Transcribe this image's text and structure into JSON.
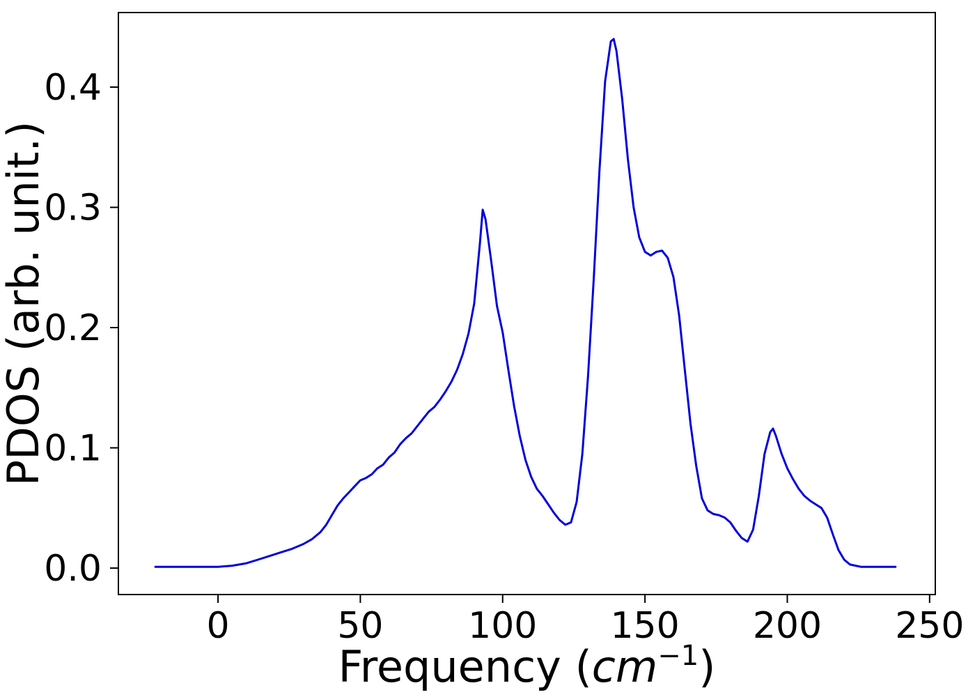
{
  "chart_data": {
    "type": "line",
    "title": "",
    "xlabel": "Frequency (cm^-1)",
    "xlabel_parts": {
      "prefix": "Frequency (",
      "italic": "cm",
      "superscript": "−1",
      "suffix": ")"
    },
    "ylabel": "PDOS (arb. unit.)",
    "line_color": "#0000dd",
    "grid": false,
    "legend": "none",
    "xlim": [
      -35,
      252
    ],
    "ylim": [
      -0.022,
      0.462
    ],
    "x_ticks": [
      0,
      50,
      100,
      150,
      200,
      250
    ],
    "x_tick_labels": [
      "0",
      "50",
      "100",
      "150",
      "200",
      "250"
    ],
    "y_ticks": [
      0.0,
      0.1,
      0.2,
      0.3,
      0.4
    ],
    "y_tick_labels": [
      "0.0",
      "0.1",
      "0.2",
      "0.3",
      "0.4"
    ],
    "points": [
      [
        -22,
        0.001
      ],
      [
        -15,
        0.001
      ],
      [
        -10,
        0.001
      ],
      [
        -5,
        0.001
      ],
      [
        0,
        0.001
      ],
      [
        5,
        0.002
      ],
      [
        10,
        0.004
      ],
      [
        14,
        0.007
      ],
      [
        18,
        0.01
      ],
      [
        22,
        0.013
      ],
      [
        26,
        0.016
      ],
      [
        30,
        0.02
      ],
      [
        33,
        0.024
      ],
      [
        36,
        0.03
      ],
      [
        38,
        0.036
      ],
      [
        40,
        0.044
      ],
      [
        42,
        0.052
      ],
      [
        44,
        0.058
      ],
      [
        46,
        0.063
      ],
      [
        48,
        0.068
      ],
      [
        50,
        0.073
      ],
      [
        52,
        0.075
      ],
      [
        54,
        0.078
      ],
      [
        56,
        0.083
      ],
      [
        58,
        0.086
      ],
      [
        60,
        0.092
      ],
      [
        62,
        0.096
      ],
      [
        64,
        0.103
      ],
      [
        66,
        0.108
      ],
      [
        68,
        0.112
      ],
      [
        70,
        0.118
      ],
      [
        72,
        0.124
      ],
      [
        74,
        0.13
      ],
      [
        76,
        0.134
      ],
      [
        78,
        0.14
      ],
      [
        80,
        0.147
      ],
      [
        82,
        0.155
      ],
      [
        84,
        0.165
      ],
      [
        86,
        0.178
      ],
      [
        88,
        0.195
      ],
      [
        90,
        0.22
      ],
      [
        92,
        0.27
      ],
      [
        93,
        0.298
      ],
      [
        94,
        0.29
      ],
      [
        96,
        0.255
      ],
      [
        98,
        0.218
      ],
      [
        100,
        0.196
      ],
      [
        102,
        0.165
      ],
      [
        104,
        0.135
      ],
      [
        106,
        0.11
      ],
      [
        108,
        0.09
      ],
      [
        110,
        0.076
      ],
      [
        112,
        0.066
      ],
      [
        114,
        0.06
      ],
      [
        116,
        0.053
      ],
      [
        118,
        0.046
      ],
      [
        120,
        0.04
      ],
      [
        122,
        0.036
      ],
      [
        124,
        0.038
      ],
      [
        126,
        0.055
      ],
      [
        128,
        0.095
      ],
      [
        130,
        0.16
      ],
      [
        132,
        0.24
      ],
      [
        134,
        0.33
      ],
      [
        136,
        0.405
      ],
      [
        138,
        0.438
      ],
      [
        139,
        0.44
      ],
      [
        140,
        0.43
      ],
      [
        142,
        0.39
      ],
      [
        144,
        0.34
      ],
      [
        146,
        0.3
      ],
      [
        148,
        0.275
      ],
      [
        150,
        0.263
      ],
      [
        152,
        0.26
      ],
      [
        154,
        0.263
      ],
      [
        156,
        0.264
      ],
      [
        158,
        0.258
      ],
      [
        160,
        0.242
      ],
      [
        162,
        0.21
      ],
      [
        164,
        0.165
      ],
      [
        166,
        0.12
      ],
      [
        168,
        0.085
      ],
      [
        170,
        0.058
      ],
      [
        172,
        0.048
      ],
      [
        174,
        0.045
      ],
      [
        176,
        0.044
      ],
      [
        178,
        0.042
      ],
      [
        180,
        0.038
      ],
      [
        182,
        0.031
      ],
      [
        184,
        0.025
      ],
      [
        186,
        0.022
      ],
      [
        188,
        0.032
      ],
      [
        190,
        0.06
      ],
      [
        192,
        0.095
      ],
      [
        194,
        0.113
      ],
      [
        195,
        0.116
      ],
      [
        196,
        0.11
      ],
      [
        198,
        0.095
      ],
      [
        200,
        0.083
      ],
      [
        202,
        0.074
      ],
      [
        204,
        0.066
      ],
      [
        206,
        0.06
      ],
      [
        208,
        0.056
      ],
      [
        210,
        0.053
      ],
      [
        212,
        0.05
      ],
      [
        214,
        0.042
      ],
      [
        216,
        0.028
      ],
      [
        218,
        0.015
      ],
      [
        220,
        0.007
      ],
      [
        222,
        0.003
      ],
      [
        224,
        0.002
      ],
      [
        226,
        0.001
      ],
      [
        230,
        0.001
      ],
      [
        234,
        0.001
      ],
      [
        238,
        0.001
      ]
    ]
  }
}
